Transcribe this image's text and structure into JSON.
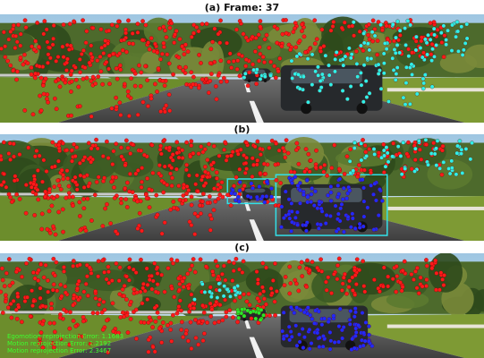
{
  "panels": [
    {
      "label": "(a)",
      "title": "Frame: 37"
    },
    {
      "label": "(b)"
    },
    {
      "label": "(c)"
    }
  ],
  "status_lines": [
    "Egomotion reprojection Error: 1.1683",
    "Motion reprojection Error: 1.2192",
    "Motion reprojection Error: 2.3467"
  ],
  "colors": {
    "static_points": "#ff1a1a",
    "candidate_points": "#2ff0e8",
    "car_points": "#1f2bff",
    "moving_points": "#27e82a",
    "box_color": "#32e0e8",
    "status_text": "#3dff2e"
  }
}
